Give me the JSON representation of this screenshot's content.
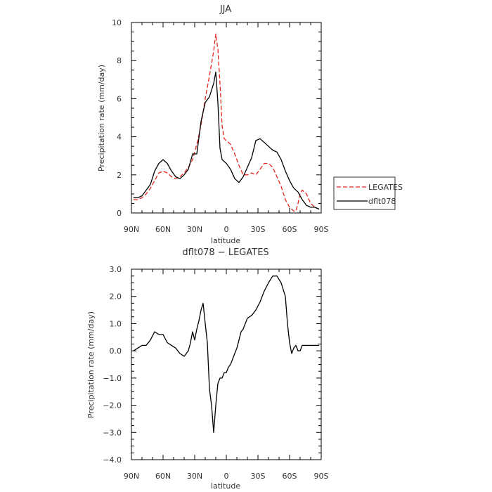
{
  "chart_data": [
    {
      "type": "line",
      "title": "JJA",
      "xlabel": "latitude",
      "ylabel": "Precipitation rate (mm/day)",
      "x_ticks": [
        "90N",
        "60N",
        "30N",
        "0",
        "30S",
        "60S",
        "90S"
      ],
      "xlim": [
        90,
        -90
      ],
      "ylim": [
        0,
        10
      ],
      "y_ticks": [
        "0",
        "2",
        "4",
        "6",
        "8",
        "10"
      ],
      "y_tick_values": [
        0,
        2,
        4,
        6,
        8,
        10
      ],
      "legend": {
        "placement": "right"
      },
      "series": [
        {
          "name": "LEGATES",
          "color": "#e8261f",
          "dash": "dashed",
          "x": [
            88,
            84,
            80,
            76,
            72,
            68,
            64,
            60,
            56,
            52,
            48,
            44,
            40,
            36,
            32,
            28,
            24,
            20,
            16,
            12,
            10,
            8,
            6,
            4,
            2,
            0,
            -4,
            -8,
            -12,
            -16,
            -20,
            -24,
            -28,
            -32,
            -36,
            -40,
            -44,
            -48,
            -52,
            -56,
            -60,
            -64,
            -66,
            -68,
            -70,
            -72,
            -76,
            -80,
            -84,
            -88
          ],
          "values": [
            0.7,
            0.7,
            0.8,
            1.0,
            1.3,
            1.7,
            2.1,
            2.2,
            2.1,
            1.9,
            1.8,
            1.9,
            2.1,
            2.4,
            2.8,
            3.6,
            4.6,
            6.0,
            7.2,
            8.5,
            9.4,
            8.6,
            6.8,
            4.6,
            3.9,
            3.8,
            3.6,
            3.1,
            2.5,
            2.0,
            2.0,
            2.1,
            2.0,
            2.3,
            2.6,
            2.6,
            2.4,
            1.9,
            1.4,
            0.7,
            0.3,
            0.1,
            0.1,
            0.5,
            1.0,
            1.2,
            1.0,
            0.5,
            0.3,
            0.2
          ]
        },
        {
          "name": "dflt078",
          "color": "#000000",
          "dash": "solid",
          "x": [
            88,
            84,
            80,
            76,
            72,
            68,
            64,
            60,
            56,
            52,
            48,
            44,
            40,
            36,
            32,
            28,
            24,
            20,
            16,
            12,
            10,
            8,
            6,
            4,
            2,
            0,
            -4,
            -8,
            -12,
            -16,
            -20,
            -24,
            -28,
            -32,
            -36,
            -40,
            -44,
            -48,
            -52,
            -56,
            -60,
            -64,
            -68,
            -72,
            -76,
            -80,
            -84,
            -88
          ],
          "values": [
            0.8,
            0.8,
            0.9,
            1.2,
            1.5,
            2.2,
            2.6,
            2.8,
            2.6,
            2.2,
            1.9,
            1.8,
            2.0,
            2.3,
            3.1,
            3.1,
            4.8,
            5.8,
            6.1,
            6.8,
            7.4,
            5.8,
            3.4,
            2.8,
            2.7,
            2.6,
            2.3,
            1.8,
            1.6,
            1.9,
            2.4,
            2.9,
            3.8,
            3.9,
            3.7,
            3.5,
            3.3,
            3.2,
            2.8,
            2.2,
            1.7,
            1.3,
            1.1,
            0.7,
            0.4,
            0.3,
            0.3,
            0.2
          ]
        }
      ]
    },
    {
      "type": "line",
      "title": "dflt078 − LEGATES",
      "xlabel": "latitude",
      "ylabel": "Precipitation rate (mm/day)",
      "x_ticks": [
        "90N",
        "60N",
        "30N",
        "0",
        "30S",
        "60S",
        "90S"
      ],
      "xlim": [
        90,
        -90
      ],
      "ylim": [
        -4,
        3
      ],
      "y_ticks": [
        "−4.0",
        "−3.0",
        "−2.0",
        "−1.0",
        "0.0",
        "1.0",
        "2.0",
        "3.0"
      ],
      "y_tick_values": [
        -4,
        -3,
        -2,
        -1,
        0,
        1,
        2,
        3
      ],
      "series": [
        {
          "color": "#000000",
          "dash": "solid",
          "x": [
            88,
            84,
            80,
            76,
            72,
            68,
            64,
            60,
            56,
            52,
            48,
            44,
            40,
            36,
            34,
            32,
            30,
            28,
            26,
            24,
            22,
            20,
            18,
            16,
            14,
            12,
            10,
            8,
            6,
            4,
            2,
            0,
            -2,
            -4,
            -6,
            -8,
            -10,
            -12,
            -14,
            -16,
            -18,
            -20,
            -24,
            -28,
            -32,
            -36,
            -40,
            -44,
            -48,
            -52,
            -56,
            -58,
            -60,
            -62,
            -64,
            -66,
            -68,
            -70,
            -72,
            -76,
            -80,
            -84,
            -88
          ],
          "values": [
            0.0,
            0.1,
            0.2,
            0.2,
            0.4,
            0.7,
            0.6,
            0.6,
            0.3,
            0.2,
            0.1,
            -0.1,
            -0.2,
            0.0,
            0.3,
            0.7,
            0.4,
            0.8,
            1.1,
            1.5,
            1.75,
            1.0,
            0.3,
            -1.4,
            -2.0,
            -3.0,
            -2.0,
            -1.2,
            -1.0,
            -1.0,
            -0.8,
            -0.8,
            -0.6,
            -0.5,
            -0.3,
            -0.1,
            0.1,
            0.4,
            0.7,
            0.8,
            1.0,
            1.2,
            1.3,
            1.5,
            1.8,
            2.2,
            2.5,
            2.75,
            2.75,
            2.5,
            2.0,
            1.0,
            0.3,
            -0.1,
            0.1,
            0.2,
            0.0,
            0.0,
            0.2,
            0.2,
            0.2,
            0.2,
            0.2
          ]
        }
      ]
    }
  ]
}
